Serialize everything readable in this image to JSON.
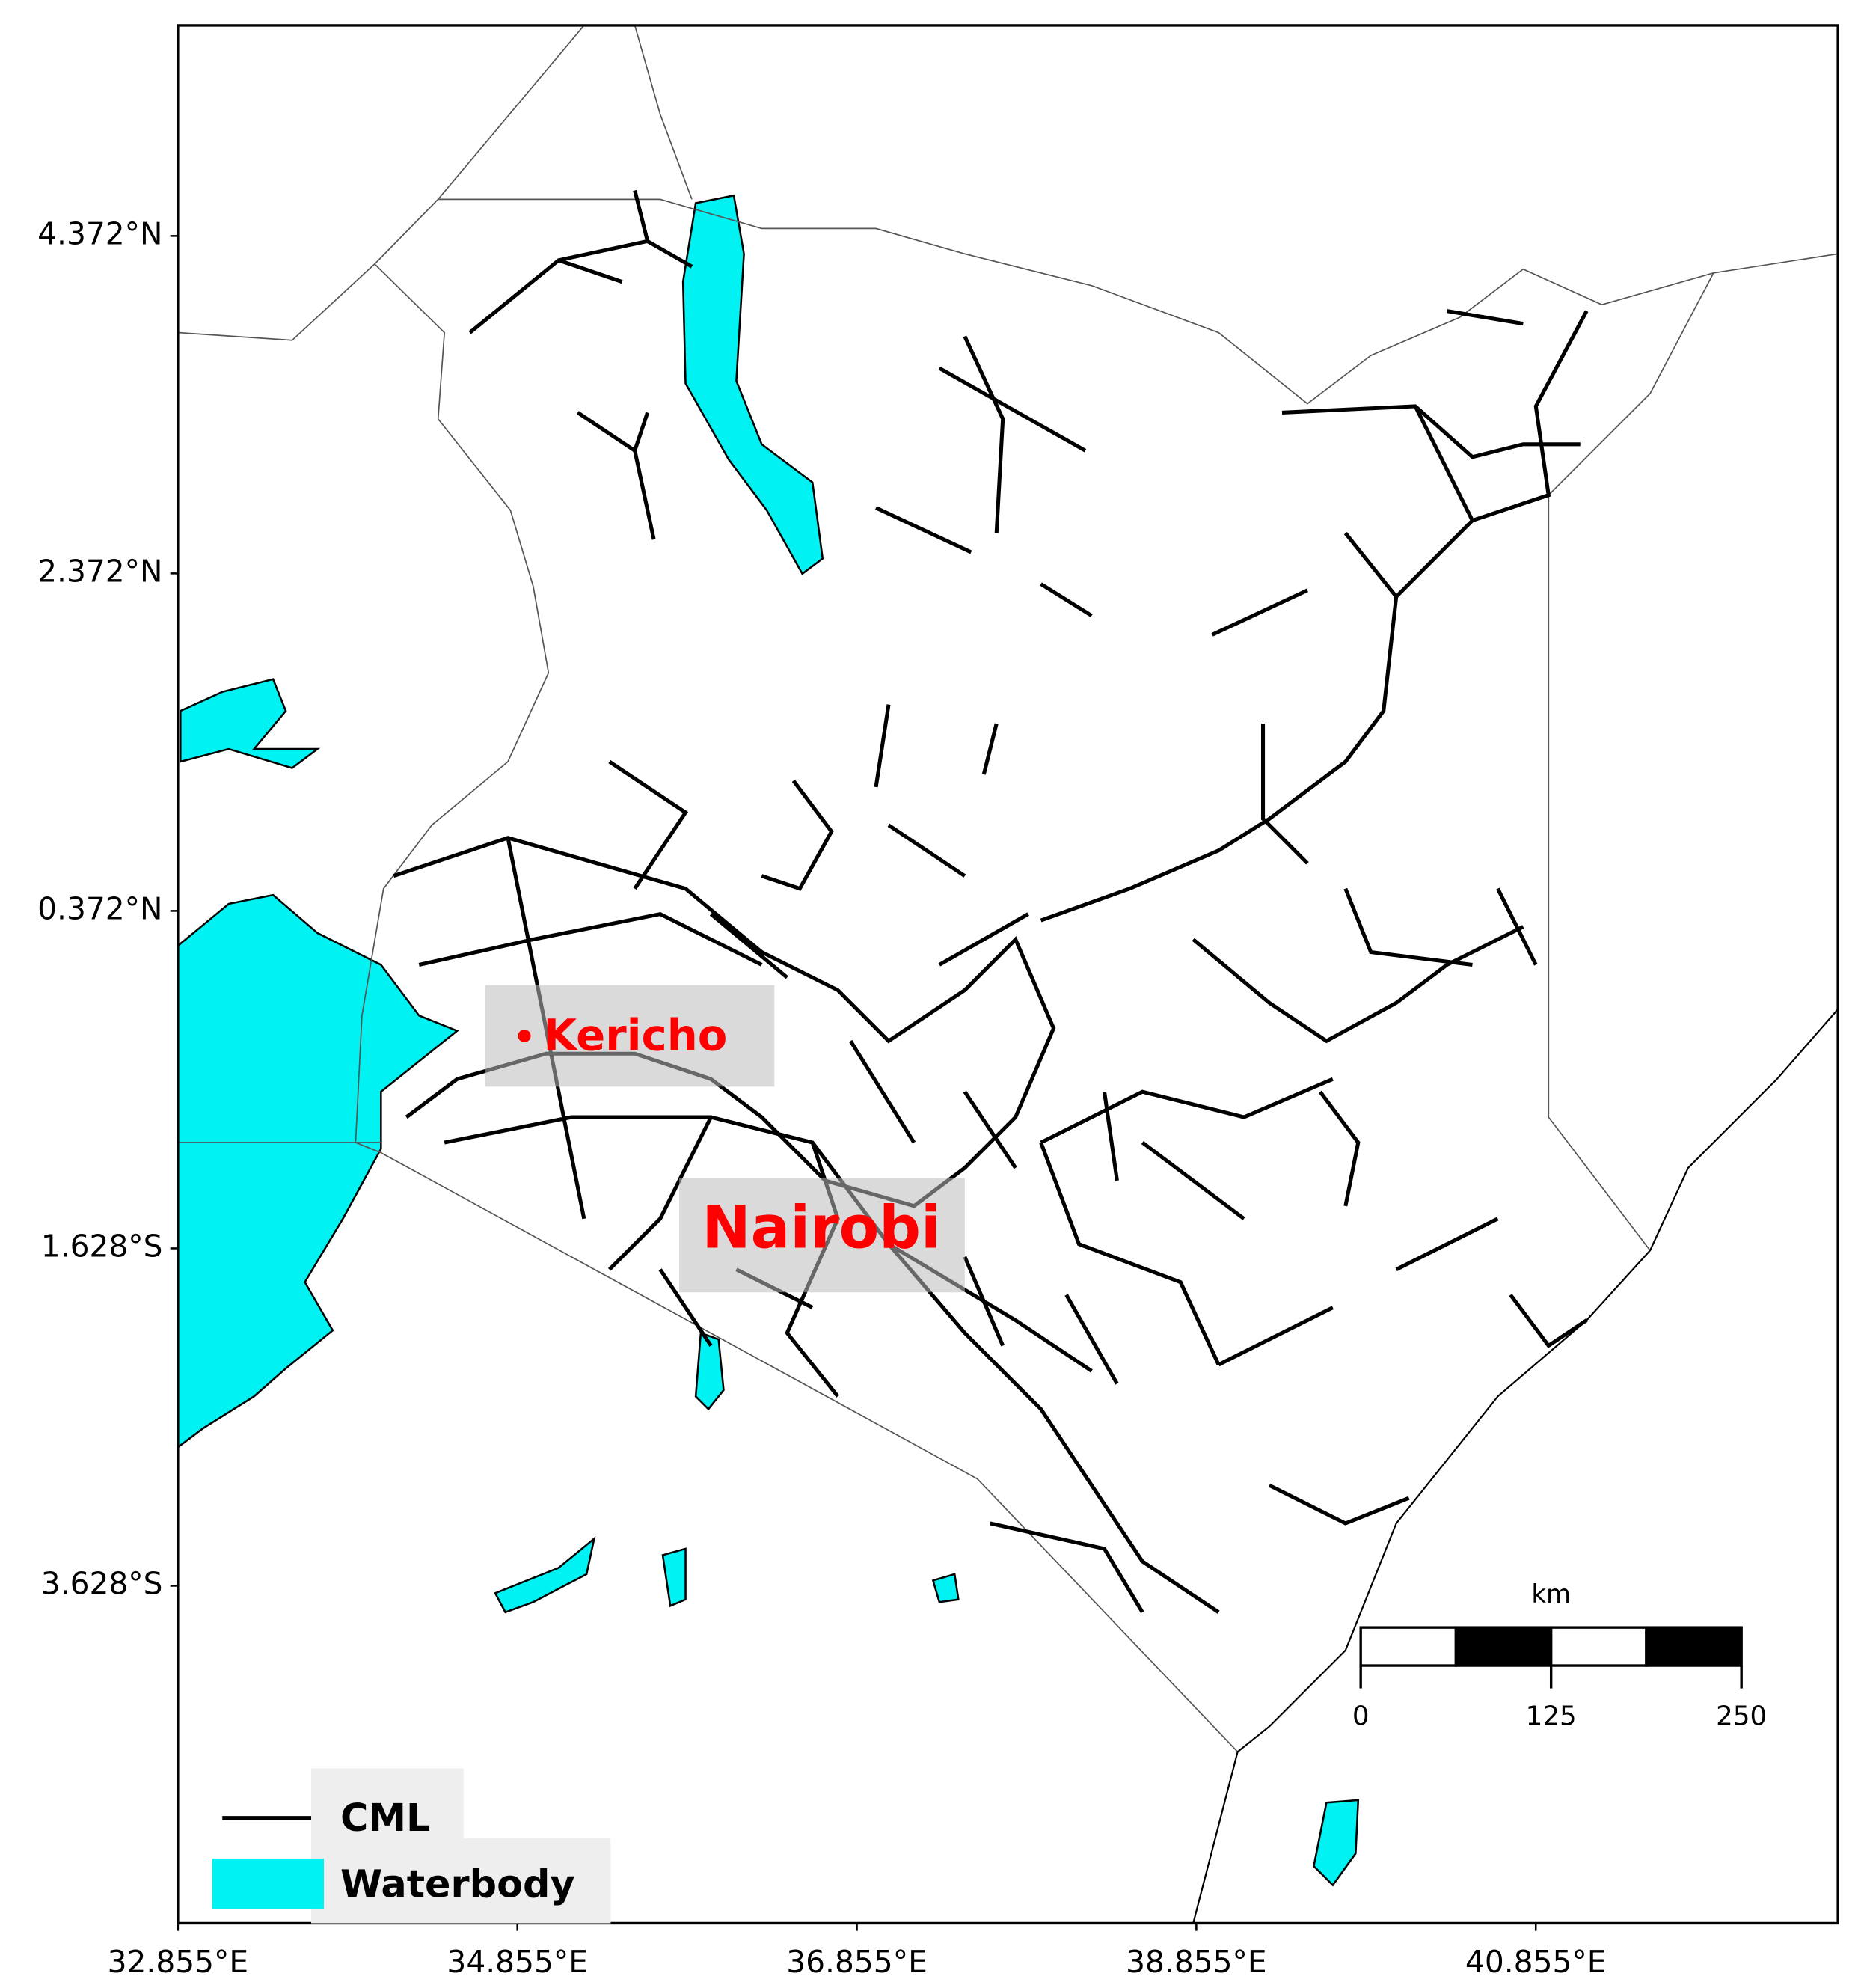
{
  "map": {
    "xlim": [
      32.855,
      42.635
    ],
    "ylim": [
      -5.628,
      5.62
    ],
    "xticks": [
      {
        "value": 32.855,
        "label": "32.855°E"
      },
      {
        "value": 34.855,
        "label": "34.855°E"
      },
      {
        "value": 36.855,
        "label": "36.855°E"
      },
      {
        "value": 38.855,
        "label": "38.855°E"
      },
      {
        "value": 40.855,
        "label": "40.855°E"
      }
    ],
    "yticks": [
      {
        "value": 4.372,
        "label": "4.372°N"
      },
      {
        "value": 2.372,
        "label": "2.372°N"
      },
      {
        "value": 0.372,
        "label": "0.372°N"
      },
      {
        "value": -1.628,
        "label": "1.628°S"
      },
      {
        "value": -3.628,
        "label": "3.628°S"
      }
    ],
    "places": [
      "Kericho",
      "Nairobi"
    ],
    "legend": [
      {
        "label": "CML",
        "color": "#000000"
      },
      {
        "label": "Waterbody",
        "color": "#00f2f2"
      }
    ],
    "scale_bar": {
      "unit": "km",
      "lim": [
        0,
        250
      ],
      "ticks": [
        0,
        125,
        250
      ]
    }
  }
}
